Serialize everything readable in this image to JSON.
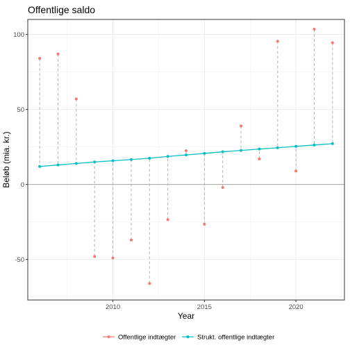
{
  "chart_data": {
    "type": "line",
    "title": "Offentlige saldo",
    "xlabel": "Year",
    "ylabel": "Beløb (mia. kr.)",
    "xlim": [
      2005.35,
      2022.65
    ],
    "ylim": [
      -77,
      110
    ],
    "x_ticks": [
      2010,
      2015,
      2020
    ],
    "y_ticks": [
      -50,
      0,
      50,
      100
    ],
    "grid": true,
    "legend_position": "bottom",
    "x": [
      2006,
      2007,
      2008,
      2009,
      2010,
      2011,
      2012,
      2013,
      2014,
      2015,
      2016,
      2017,
      2018,
      2019,
      2020,
      2021,
      2022
    ],
    "series": [
      {
        "name": "Offentlige indtægter",
        "color": "#F8766D",
        "style": "points",
        "values": [
          84,
          87,
          57,
          -48,
          -49,
          -37,
          -66,
          -23.5,
          22.5,
          -26.5,
          -2,
          39,
          17,
          95.5,
          9,
          103.5,
          94.5
        ]
      },
      {
        "name": "Strukt. offentlige indtægter",
        "color": "#00BFC4",
        "style": "line+points",
        "values": [
          12,
          13,
          14,
          15,
          15.8,
          16.6,
          17.5,
          18.7,
          19.7,
          20.7,
          21.8,
          22.7,
          23.6,
          24.5,
          25.4,
          26.3,
          27.2
        ]
      }
    ],
    "connectors": {
      "style": "dashed",
      "color": "#b3b3b3",
      "description": "vertical segments joining each year's two values"
    },
    "zero_line": 0
  }
}
